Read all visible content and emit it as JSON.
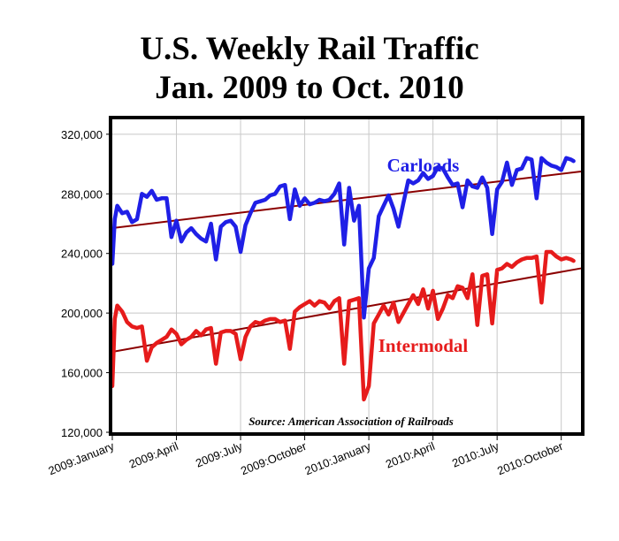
{
  "chart_data": {
    "type": "line",
    "title": "U.S. Weekly Rail Traffic",
    "subtitle": "Jan. 2009 to Oct. 2010",
    "source": "Source: American Association of Railroads",
    "xlabel": "",
    "ylabel": "",
    "ylim": [
      120000,
      330000
    ],
    "xlim": [
      0,
      95
    ],
    "grid": true,
    "x_unit": "weeks since start of January 2009",
    "yticks": [
      {
        "value": 120000,
        "label": "120,000"
      },
      {
        "value": 160000,
        "label": "160,000"
      },
      {
        "value": 200000,
        "label": "200,000"
      },
      {
        "value": 240000,
        "label": "240,000"
      },
      {
        "value": 280000,
        "label": "280,000"
      },
      {
        "value": 320000,
        "label": "320,000"
      }
    ],
    "xticks": [
      {
        "week": 0,
        "label": "2009:January"
      },
      {
        "week": 13,
        "label": "2009:April"
      },
      {
        "week": 26,
        "label": "2009:July"
      },
      {
        "week": 39,
        "label": "2009:October"
      },
      {
        "week": 52,
        "label": "2010:January"
      },
      {
        "week": 65,
        "label": "2010:April"
      },
      {
        "week": 78,
        "label": "2010:July"
      },
      {
        "week": 91,
        "label": "2010:October"
      }
    ],
    "series": [
      {
        "name": "Carloads",
        "color": "#1f1fe6",
        "label_week": 63,
        "label_value": 295000,
        "points": [
          [
            0,
            233000
          ],
          [
            0.5,
            263000
          ],
          [
            1,
            272000
          ],
          [
            2,
            267000
          ],
          [
            3,
            268000
          ],
          [
            4,
            261000
          ],
          [
            5,
            263000
          ],
          [
            6,
            280000
          ],
          [
            7,
            278000
          ],
          [
            8,
            282000
          ],
          [
            9,
            276000
          ],
          [
            10,
            277000
          ],
          [
            11,
            277000
          ],
          [
            12,
            251000
          ],
          [
            13,
            262000
          ],
          [
            14,
            248000
          ],
          [
            15,
            254000
          ],
          [
            16,
            257000
          ],
          [
            17,
            253000
          ],
          [
            18,
            250000
          ],
          [
            19,
            248000
          ],
          [
            20,
            260000
          ],
          [
            21,
            236000
          ],
          [
            22,
            258000
          ],
          [
            23,
            261000
          ],
          [
            24,
            262000
          ],
          [
            25,
            258000
          ],
          [
            26,
            241000
          ],
          [
            27,
            259000
          ],
          [
            28,
            267000
          ],
          [
            29,
            274000
          ],
          [
            30,
            275000
          ],
          [
            31,
            276000
          ],
          [
            32,
            279000
          ],
          [
            33,
            280000
          ],
          [
            34,
            285000
          ],
          [
            35,
            286000
          ],
          [
            36,
            263000
          ],
          [
            37,
            283000
          ],
          [
            38,
            272000
          ],
          [
            39,
            277000
          ],
          [
            40,
            273000
          ],
          [
            41,
            274000
          ],
          [
            42,
            276000
          ],
          [
            43,
            275000
          ],
          [
            44,
            276000
          ],
          [
            45,
            280000
          ],
          [
            46,
            287000
          ],
          [
            47,
            246000
          ],
          [
            48,
            284000
          ],
          [
            49,
            262000
          ],
          [
            50,
            272000
          ],
          [
            51,
            197000
          ],
          [
            52,
            230000
          ],
          [
            53,
            237000
          ],
          [
            54,
            265000
          ],
          [
            55,
            272000
          ],
          [
            56,
            279000
          ],
          [
            57,
            270000
          ],
          [
            58,
            258000
          ],
          [
            59,
            274000
          ],
          [
            60,
            289000
          ],
          [
            61,
            287000
          ],
          [
            62,
            289000
          ],
          [
            63,
            294000
          ],
          [
            64,
            290000
          ],
          [
            65,
            292000
          ],
          [
            66,
            298000
          ],
          [
            67,
            297000
          ],
          [
            68,
            291000
          ],
          [
            69,
            286000
          ],
          [
            70,
            287000
          ],
          [
            71,
            271000
          ],
          [
            72,
            289000
          ],
          [
            73,
            285000
          ],
          [
            74,
            284000
          ],
          [
            75,
            291000
          ],
          [
            76,
            284000
          ],
          [
            77,
            253000
          ],
          [
            78,
            283000
          ],
          [
            79,
            288000
          ],
          [
            80,
            301000
          ],
          [
            81,
            286000
          ],
          [
            82,
            296000
          ],
          [
            83,
            297000
          ],
          [
            84,
            304000
          ],
          [
            85,
            303000
          ],
          [
            86,
            277000
          ],
          [
            87,
            304000
          ],
          [
            88,
            301000
          ],
          [
            89,
            299000
          ],
          [
            90,
            298000
          ],
          [
            91,
            296000
          ],
          [
            92,
            304000
          ],
          [
            93,
            303000
          ],
          [
            93.5,
            302000
          ]
        ]
      },
      {
        "name": "Intermodal",
        "color": "#e61b1b",
        "label_week": 63,
        "label_value": 174000,
        "points": [
          [
            0,
            151000
          ],
          [
            0.5,
            196000
          ],
          [
            1,
            205000
          ],
          [
            2,
            201000
          ],
          [
            3,
            194000
          ],
          [
            4,
            191000
          ],
          [
            5,
            190000
          ],
          [
            6,
            191000
          ],
          [
            7,
            168000
          ],
          [
            8,
            177000
          ],
          [
            9,
            180000
          ],
          [
            10,
            182000
          ],
          [
            11,
            184000
          ],
          [
            12,
            189000
          ],
          [
            13,
            186000
          ],
          [
            14,
            179000
          ],
          [
            15,
            182000
          ],
          [
            16,
            184000
          ],
          [
            17,
            188000
          ],
          [
            18,
            185000
          ],
          [
            19,
            189000
          ],
          [
            20,
            190000
          ],
          [
            21,
            166000
          ],
          [
            22,
            187000
          ],
          [
            23,
            188000
          ],
          [
            24,
            188000
          ],
          [
            25,
            186000
          ],
          [
            26,
            169000
          ],
          [
            27,
            184000
          ],
          [
            28,
            191000
          ],
          [
            29,
            194000
          ],
          [
            30,
            193000
          ],
          [
            31,
            195000
          ],
          [
            32,
            196000
          ],
          [
            33,
            196000
          ],
          [
            34,
            194000
          ],
          [
            35,
            195000
          ],
          [
            36,
            176000
          ],
          [
            37,
            201000
          ],
          [
            38,
            204000
          ],
          [
            39,
            206000
          ],
          [
            40,
            208000
          ],
          [
            41,
            205000
          ],
          [
            42,
            208000
          ],
          [
            43,
            207000
          ],
          [
            44,
            203000
          ],
          [
            45,
            208000
          ],
          [
            46,
            210000
          ],
          [
            47,
            166000
          ],
          [
            48,
            208000
          ],
          [
            49,
            209000
          ],
          [
            50,
            210000
          ],
          [
            51,
            142000
          ],
          [
            52,
            151000
          ],
          [
            53,
            193000
          ],
          [
            54,
            199000
          ],
          [
            55,
            205000
          ],
          [
            56,
            199000
          ],
          [
            57,
            207000
          ],
          [
            58,
            194000
          ],
          [
            59,
            200000
          ],
          [
            60,
            206000
          ],
          [
            61,
            212000
          ],
          [
            62,
            206000
          ],
          [
            63,
            216000
          ],
          [
            64,
            203000
          ],
          [
            65,
            215000
          ],
          [
            66,
            196000
          ],
          [
            67,
            203000
          ],
          [
            68,
            212000
          ],
          [
            69,
            210000
          ],
          [
            70,
            218000
          ],
          [
            71,
            217000
          ],
          [
            72,
            210000
          ],
          [
            73,
            226000
          ],
          [
            74,
            192000
          ],
          [
            75,
            225000
          ],
          [
            76,
            226000
          ],
          [
            77,
            193000
          ],
          [
            78,
            229000
          ],
          [
            79,
            230000
          ],
          [
            80,
            233000
          ],
          [
            81,
            231000
          ],
          [
            82,
            234000
          ],
          [
            83,
            236000
          ],
          [
            84,
            237000
          ],
          [
            85,
            237000
          ],
          [
            86,
            238000
          ],
          [
            87,
            207000
          ],
          [
            88,
            241000
          ],
          [
            89,
            241000
          ],
          [
            90,
            238000
          ],
          [
            91,
            236000
          ],
          [
            92,
            237000
          ],
          [
            93,
            236000
          ],
          [
            93.5,
            235000
          ]
        ]
      }
    ],
    "trendlines": [
      {
        "name": "Carloads trend",
        "color": "#8b0000",
        "start": [
          0,
          257000
        ],
        "end": [
          95,
          295000
        ]
      },
      {
        "name": "Intermodal trend",
        "color": "#8b0000",
        "start": [
          0,
          174000
        ],
        "end": [
          95,
          230000
        ]
      }
    ]
  }
}
